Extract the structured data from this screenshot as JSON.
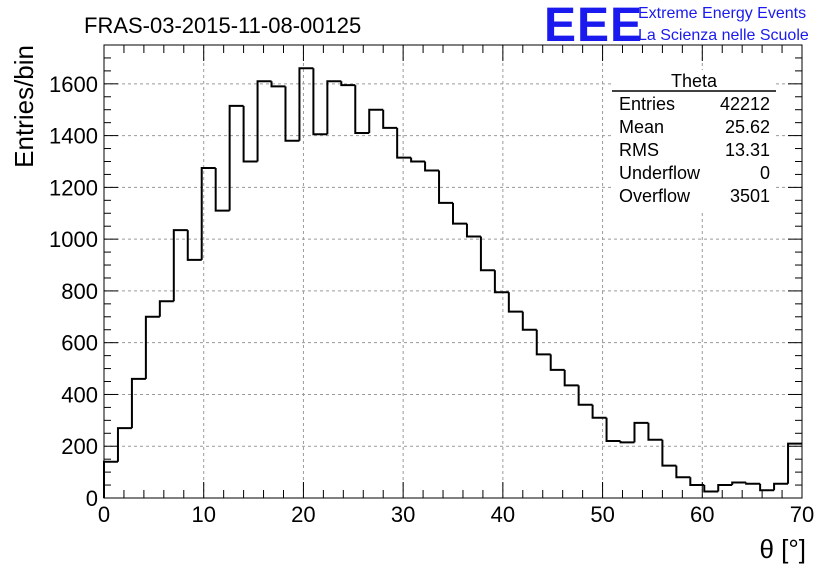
{
  "header": {
    "title": "FRAS-03-2015-11-08-00125",
    "logo": {
      "mark": "EEE",
      "line1": "Extreme Energy Events",
      "line2": "La Scienza nelle Scuole",
      "color": "#1a1aee"
    }
  },
  "stats_box": {
    "title": "Theta",
    "rows": [
      {
        "label": "Entries",
        "value": "42212"
      },
      {
        "label": "Mean",
        "value": "25.62"
      },
      {
        "label": "RMS",
        "value": "13.31"
      },
      {
        "label": "Underflow",
        "value": "0"
      },
      {
        "label": "Overflow",
        "value": "3501"
      }
    ]
  },
  "chart_data": {
    "type": "histogram",
    "title": "FRAS-03-2015-11-08-00125",
    "xlabel": "θ [°]",
    "ylabel": "Entries/bin",
    "xlim": [
      0,
      70
    ],
    "ylim": [
      0,
      1750
    ],
    "bin_width": 1.4,
    "grid": true,
    "x_ticks": [
      0,
      10,
      20,
      30,
      40,
      50,
      60,
      70
    ],
    "y_ticks": [
      0,
      200,
      400,
      600,
      800,
      1000,
      1200,
      1400,
      1600
    ],
    "bin_edges_start": 0,
    "values": [
      140,
      270,
      460,
      700,
      760,
      1035,
      920,
      1275,
      1110,
      1515,
      1300,
      1610,
      1590,
      1380,
      1660,
      1405,
      1610,
      1595,
      1410,
      1500,
      1430,
      1315,
      1300,
      1265,
      1140,
      1060,
      1010,
      880,
      795,
      720,
      650,
      555,
      495,
      435,
      360,
      310,
      220,
      215,
      290,
      225,
      125,
      80,
      50,
      25,
      50,
      60,
      55,
      30,
      55,
      210
    ]
  }
}
